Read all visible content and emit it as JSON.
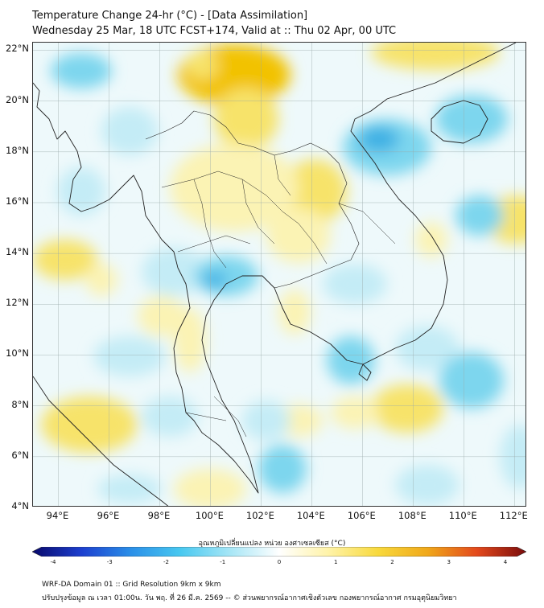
{
  "title": {
    "line1": "Temperature Change 24-hr (°C) - [Data Assimilation]",
    "line2": "Wednesday 25 Mar, 18 UTC FCST+174, Valid at :: Thu 02 Apr, 00 UTC"
  },
  "map": {
    "lat_labels": [
      "22°N",
      "20°N",
      "18°N",
      "16°N",
      "14°N",
      "12°N",
      "10°N",
      "8°N",
      "6°N",
      "4°N"
    ],
    "lon_labels": [
      "94°E",
      "96°E",
      "98°E",
      "100°E",
      "102°E",
      "104°E",
      "106°E",
      "108°E",
      "110°E",
      "112°E"
    ],
    "lat_range": [
      4,
      22.3
    ],
    "lon_range": [
      93,
      112.5
    ],
    "colors": {
      "strong_warm": "#f2c200",
      "warm": "#f7e36a",
      "light_warm": "#fbf3b4",
      "neutral": "#eef9fb",
      "light_cool": "#c4ecf6",
      "cool": "#7dd6ee",
      "strong_cool": "#3db0e4",
      "coast_line": "#222222"
    }
  },
  "colorbar": {
    "title": "อุณหภูมิเปลี่ยนแปลง หน่วย องศาเซลเซียส (°C)",
    "ticks": [
      "-4",
      "-3",
      "-2",
      "-1",
      "0",
      "1",
      "2",
      "3",
      "4"
    ],
    "colors": [
      "#08086b",
      "#1c3fcf",
      "#2a8fe8",
      "#48c8f0",
      "#a6e6f6",
      "#ffffff",
      "#fff3a8",
      "#f8d93c",
      "#f0a81a",
      "#e3491c",
      "#7a0c0c"
    ]
  },
  "footer": {
    "line1": "WRF-DA Domain 01 :: Grid Resolution 9km x 9km",
    "line2": "ปรับปรุงข้อมูล ณ เวลา 01:00น. วัน พฤ. ที่ 26 มี.ค. 2569 -- © ส่วนพยากรณ์อากาศเชิงตัวเลข กองพยากรณ์อากาศ กรมอุตุนิยมวิทยา"
  }
}
